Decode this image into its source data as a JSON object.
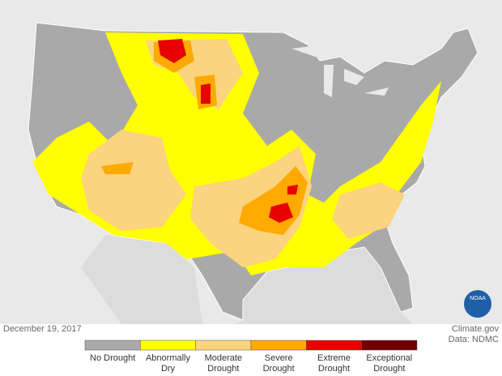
{
  "map": {
    "date": "December 19, 2017",
    "source": "Climate.gov",
    "data_credit": "Data: NDMC",
    "logo": "NOAA"
  },
  "legend": [
    {
      "label": "No Drought",
      "color": "#a9a9a9"
    },
    {
      "label": "Abnormally Dry",
      "color": "#ffff00"
    },
    {
      "label": "Moderate Drought",
      "color": "#fcd37f"
    },
    {
      "label": "Severe Drought",
      "color": "#ffaa00"
    },
    {
      "label": "Extreme Drought",
      "color": "#e60000"
    },
    {
      "label": "Exceptional Drought",
      "color": "#730000"
    }
  ]
}
